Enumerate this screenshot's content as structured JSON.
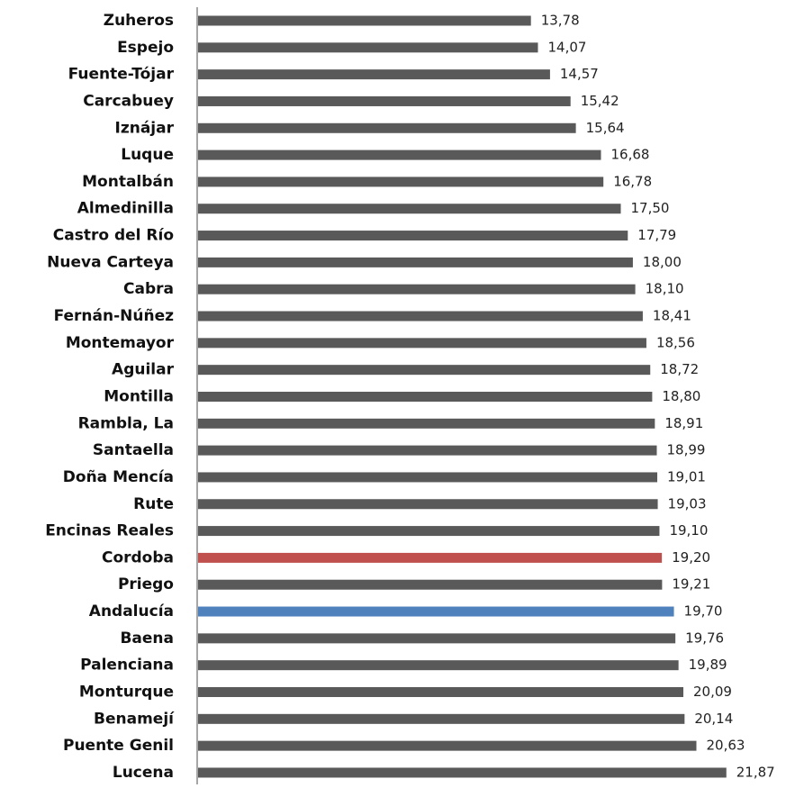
{
  "chart_data": {
    "type": "barh",
    "categories": [
      "Zuheros",
      "Espejo",
      "Fuente-Tójar",
      "Carcabuey",
      "Iznájar",
      "Luque",
      "Montalbán",
      "Almedinilla",
      "Castro del Río",
      "Nueva Carteya",
      "Cabra",
      "Fernán-Núñez",
      "Montemayor",
      "Aguilar",
      "Montilla",
      "Rambla, La",
      "Santaella",
      "Doña Mencía",
      "Rute",
      "Encinas Reales",
      "Cordoba",
      "Priego",
      "Andalucía",
      "Baena",
      "Palenciana",
      "Monturque",
      "Benamejí",
      "Puente Genil",
      "Lucena"
    ],
    "values": [
      13.78,
      14.07,
      14.57,
      15.42,
      15.64,
      16.68,
      16.78,
      17.5,
      17.79,
      18.0,
      18.1,
      18.41,
      18.56,
      18.72,
      18.8,
      18.91,
      18.99,
      19.01,
      19.03,
      19.1,
      19.2,
      19.21,
      19.7,
      19.76,
      19.89,
      20.09,
      20.14,
      20.63,
      21.87
    ],
    "value_labels": [
      "13,78",
      "14,07",
      "14,57",
      "15,42",
      "15,64",
      "16,68",
      "16,78",
      "17,50",
      "17,79",
      "18,00",
      "18,10",
      "18,41",
      "18,56",
      "18,72",
      "18,80",
      "18,91",
      "18,99",
      "19,01",
      "19,03",
      "19,10",
      "19,20",
      "19,21",
      "19,70",
      "19,76",
      "19,89",
      "20,09",
      "20,14",
      "20,63",
      "21,87"
    ],
    "colors": [
      "#595959",
      "#595959",
      "#595959",
      "#595959",
      "#595959",
      "#595959",
      "#595959",
      "#595959",
      "#595959",
      "#595959",
      "#595959",
      "#595959",
      "#595959",
      "#595959",
      "#595959",
      "#595959",
      "#595959",
      "#595959",
      "#595959",
      "#595959",
      "#c0504d",
      "#595959",
      "#4f81bd",
      "#595959",
      "#595959",
      "#595959",
      "#595959",
      "#595959",
      "#595959"
    ],
    "xlim": [
      0,
      24.6
    ]
  }
}
